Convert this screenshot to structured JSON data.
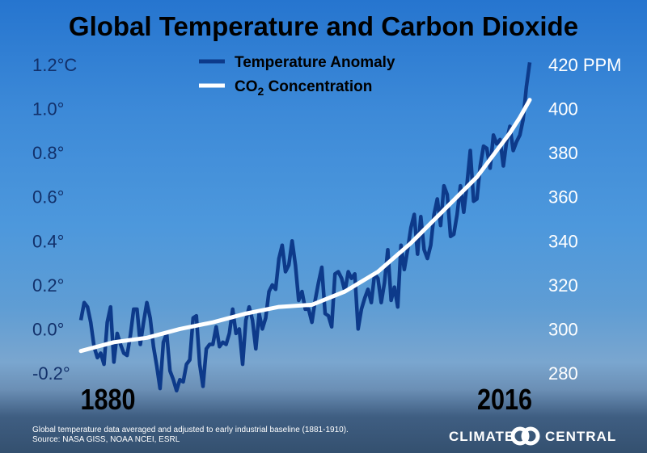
{
  "chart_data": {
    "type": "line",
    "title": "Global Temperature and Carbon Dioxide",
    "x_tick_labels": [
      "1880",
      "2016"
    ],
    "xlim": [
      1880,
      2016
    ],
    "left_axis": {
      "ylim": [
        -0.2,
        1.2
      ],
      "tick_labels": [
        "1.2°C",
        "1.0°",
        "0.8°",
        "0.6°",
        "0.4°",
        "0.2°",
        "0.0°",
        "-0.2°"
      ],
      "tick_values": [
        1.2,
        1.0,
        0.8,
        0.6,
        0.4,
        0.2,
        0.0,
        -0.2
      ]
    },
    "right_axis": {
      "ylim": [
        280,
        420
      ],
      "tick_labels": [
        "420 PPM",
        "400",
        "380",
        "360",
        "340",
        "320",
        "300",
        "280"
      ],
      "tick_values": [
        420,
        400,
        380,
        360,
        340,
        320,
        300,
        280
      ]
    },
    "grid": false,
    "legend_placement": "top-center",
    "series": [
      {
        "name": "Temperature Anomaly",
        "axis": "left",
        "color": "#0d3a8a",
        "x_start": 1880,
        "x_step": 1,
        "values": [
          0.04,
          0.12,
          0.1,
          0.03,
          -0.08,
          -0.13,
          -0.11,
          -0.16,
          0.03,
          0.1,
          -0.15,
          -0.02,
          -0.07,
          -0.11,
          -0.12,
          -0.03,
          0.09,
          0.09,
          -0.07,
          0.03,
          0.12,
          0.05,
          -0.08,
          -0.17,
          -0.27,
          -0.06,
          -0.02,
          -0.19,
          -0.23,
          -0.28,
          -0.23,
          -0.24,
          -0.16,
          -0.14,
          0.05,
          0.06,
          -0.16,
          -0.26,
          -0.09,
          -0.07,
          -0.07,
          0.01,
          -0.08,
          -0.06,
          -0.07,
          -0.02,
          0.09,
          -0.02,
          0.0,
          -0.16,
          0.04,
          0.1,
          0.04,
          -0.09,
          0.07,
          0.0,
          0.05,
          0.17,
          0.2,
          0.18,
          0.32,
          0.38,
          0.26,
          0.29,
          0.4,
          0.29,
          0.13,
          0.17,
          0.09,
          0.09,
          0.03,
          0.13,
          0.21,
          0.28,
          0.07,
          0.06,
          0.01,
          0.25,
          0.26,
          0.23,
          0.17,
          0.26,
          0.23,
          0.25,
          0.0,
          0.09,
          0.14,
          0.18,
          0.12,
          0.25,
          0.23,
          0.12,
          0.21,
          0.36,
          0.13,
          0.19,
          0.1,
          0.38,
          0.27,
          0.36,
          0.46,
          0.52,
          0.34,
          0.51,
          0.36,
          0.32,
          0.38,
          0.52,
          0.59,
          0.47,
          0.65,
          0.61,
          0.42,
          0.43,
          0.52,
          0.65,
          0.53,
          0.66,
          0.81,
          0.58,
          0.59,
          0.74,
          0.83,
          0.82,
          0.73,
          0.88,
          0.84,
          0.86,
          0.74,
          0.85,
          0.92,
          0.81,
          0.85,
          0.88,
          0.95,
          1.1,
          1.21
        ]
      },
      {
        "name": "CO2 Concentration",
        "name_display": [
          "CO",
          "2",
          " Concentration"
        ],
        "axis": "right",
        "color": "#ffffff",
        "x": [
          1880,
          1890,
          1900,
          1910,
          1920,
          1930,
          1940,
          1950,
          1960,
          1970,
          1980,
          1990,
          2000,
          2005,
          2010,
          2013,
          2016
        ],
        "values": [
          290,
          294,
          296,
          300,
          303,
          307,
          310,
          311,
          317,
          326,
          339,
          354,
          369,
          379,
          389,
          396,
          404
        ]
      }
    ]
  },
  "footnote": {
    "line1": "Global temperature data averaged and adjusted to early industrial baseline (1881-1910).",
    "line2": "Source: NASA GISS, NOAA NCEI, ESRL"
  },
  "brand": {
    "left": "CLIMATE",
    "right": "CENTRAL",
    "logo": "two-interlocking-circles"
  }
}
